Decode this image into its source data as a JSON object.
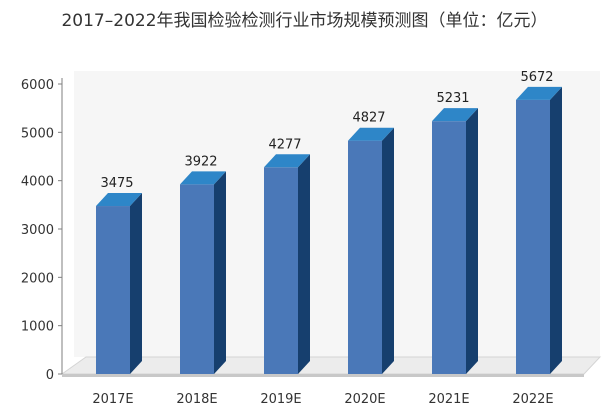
{
  "chart_data": {
    "type": "bar",
    "title": "2017–2022年我国检验检测行业市场规模预测图（单位：亿元）",
    "categories": [
      "2017E",
      "2018E",
      "2019E",
      "2020E",
      "2021E",
      "2022E"
    ],
    "values": [
      3475,
      3922,
      4277,
      4827,
      5231,
      5672
    ],
    "ylim": [
      0,
      6000
    ],
    "yticks": [
      0,
      1000,
      2000,
      3000,
      4000,
      5000,
      6000
    ],
    "grid": false,
    "legend": "none",
    "style": "3d-column",
    "colors": {
      "bar_front": "#4a78b8",
      "bar_side": "#163f6e",
      "bar_top": "#2e86c8",
      "floor_top": "#ececec",
      "floor_front": "#c8c8c8",
      "wall": "#f6f6f6",
      "axis": "#7f7f7f"
    }
  }
}
